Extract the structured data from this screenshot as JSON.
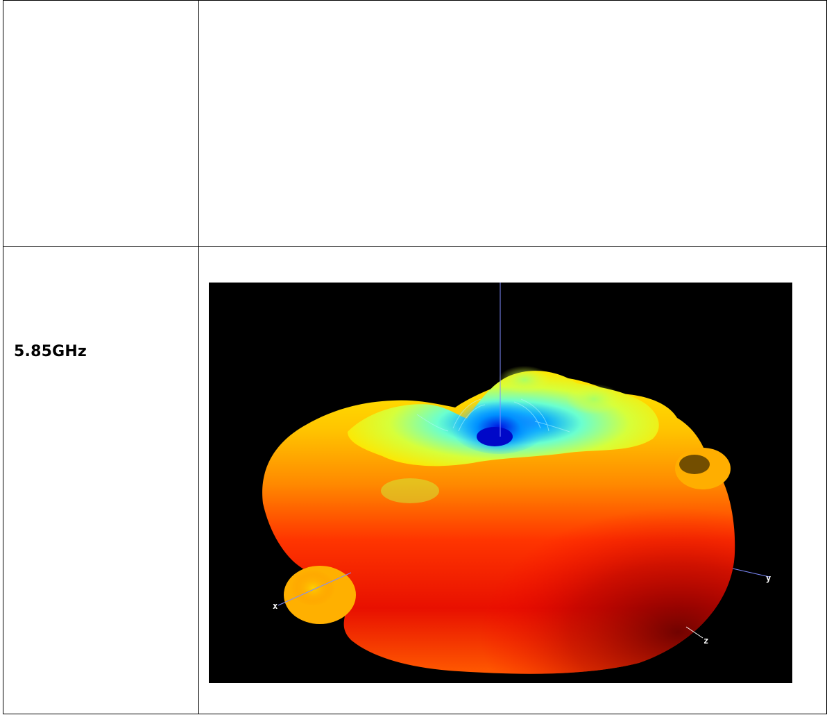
{
  "rows": [
    {
      "label": "",
      "content": ""
    },
    {
      "label": "5.85GHz",
      "plot": {
        "type": "3d-radiation-pattern",
        "background": "#000000",
        "colormap": [
          "#0033ff",
          "#00aaff",
          "#66ffcc",
          "#ccff33",
          "#ffee00",
          "#ff9900",
          "#ff3300",
          "#b30000"
        ],
        "axis_color": "#7f8cff",
        "axis_labels": {
          "x": "x",
          "y": "y",
          "z": "z"
        }
      }
    }
  ]
}
